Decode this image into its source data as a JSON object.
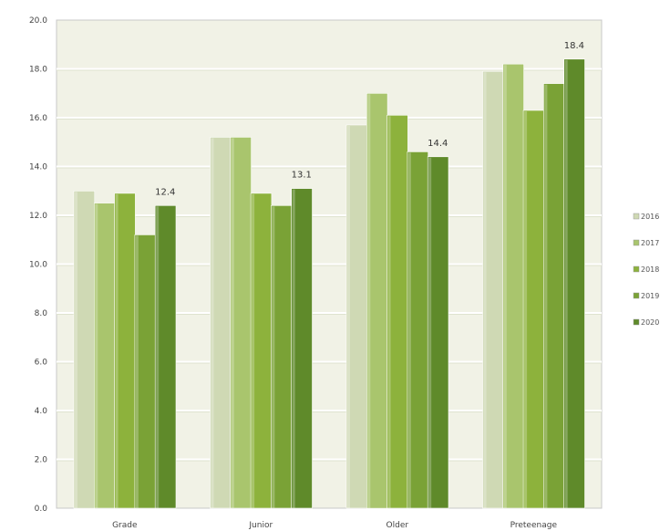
{
  "chart_data": {
    "type": "bar",
    "title": "",
    "xlabel": "",
    "ylabel": "",
    "categories": [
      "Grade",
      "Junior",
      "Older",
      "Preteenage"
    ],
    "series": [
      {
        "name": "2016",
        "color": "#cfd9b4",
        "values": [
          13.0,
          15.2,
          15.7,
          17.9
        ]
      },
      {
        "name": "2017",
        "color": "#a9c56d",
        "values": [
          12.5,
          15.2,
          17.0,
          18.2
        ]
      },
      {
        "name": "2018",
        "color": "#8db23c",
        "values": [
          12.9,
          12.9,
          16.1,
          16.3
        ]
      },
      {
        "name": "2019",
        "color": "#7aa236",
        "values": [
          11.2,
          12.4,
          14.6,
          17.4
        ]
      },
      {
        "name": "2020",
        "color": "#5f8a2a",
        "values": [
          12.4,
          13.1,
          14.4,
          18.4
        ]
      }
    ],
    "data_labels": [
      {
        "category": "Grade",
        "series": "2020",
        "text": "12.4"
      },
      {
        "category": "Junior",
        "series": "2020",
        "text": "13.1"
      },
      {
        "category": "Older",
        "series": "2020",
        "text": "14.4"
      },
      {
        "category": "Preteenage",
        "series": "2020",
        "text": "18.4"
      }
    ],
    "ylim": [
      0,
      20
    ],
    "yticks": [
      "0.0",
      "2.0",
      "4.0",
      "6.0",
      "8.0",
      "10.0",
      "12.0",
      "14.0",
      "16.0",
      "18.0",
      "20.0"
    ],
    "grid": true,
    "legend_position": "right",
    "plot_background": "#f1f2e6"
  }
}
